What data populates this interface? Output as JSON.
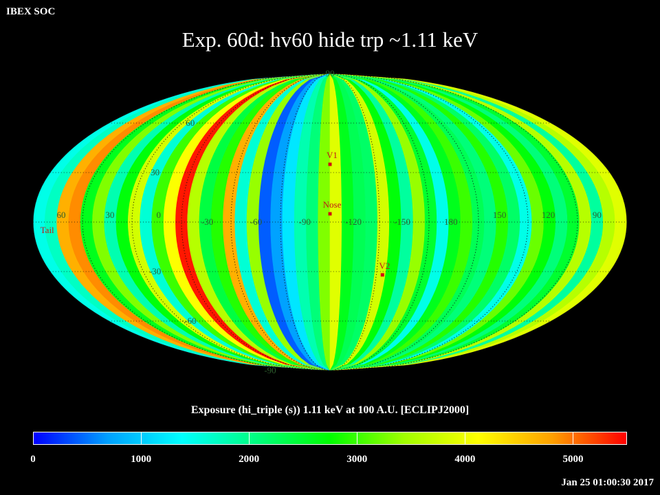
{
  "header": {
    "corner_label": "IBEX SOC",
    "title": "Exp.   60d: hv60 hide trp ~1.11 keV"
  },
  "chart_data": {
    "type": "heatmap",
    "projection": "Mollweide (full sky)",
    "frame": "ECLIPJ2000",
    "longitude_labels": [
      "60",
      "30",
      "0",
      "-30",
      "-60",
      "-90",
      "-120",
      "-150",
      "180",
      "150",
      "120",
      "90"
    ],
    "latitude_labels": [
      "90",
      "60",
      "30",
      "-30",
      "-60",
      "-90"
    ],
    "markers": [
      {
        "name": "V1",
        "lon": 255,
        "lat": 35
      },
      {
        "name": "Nose",
        "lon": 255,
        "lat": 5
      },
      {
        "name": "V2",
        "lon": 289,
        "lat": -32
      },
      {
        "name": "Tail",
        "lon": 75,
        "lat": -5
      }
    ],
    "colorbar": {
      "title": "Exposure (hi_triple (s))  1.11 keV at 100 A.U. [ECLIPJ2000]",
      "ticks": [
        "0",
        "1000",
        "2000",
        "3000",
        "4000",
        "5000"
      ],
      "range": [
        0,
        5500
      ],
      "colors": [
        "#0000ff",
        "#00a0ff",
        "#00ffff",
        "#00ff80",
        "#00ff00",
        "#a0ff00",
        "#ffff00",
        "#ffa000",
        "#ff0000"
      ]
    },
    "strip_values": [
      1500,
      1700,
      4700,
      4900,
      2600,
      3300,
      1800,
      2700,
      3800,
      1600,
      3000,
      4100,
      5400,
      3600,
      2400,
      2900,
      4700,
      1600,
      3400,
      400,
      700,
      1200,
      1800,
      2100,
      3300,
      3900,
      2600,
      2300,
      2200,
      3800,
      2700,
      1900,
      3400,
      2500,
      1500,
      2600,
      3000,
      2300,
      2100,
      2900,
      2200,
      1500,
      3200,
      2700,
      2100,
      2500,
      3600,
      1900,
      3600,
      3900
    ],
    "value_ylim": [
      0,
      5500
    ]
  },
  "footer": {
    "timestamp": "Jan 25 01:00:30 2017"
  }
}
